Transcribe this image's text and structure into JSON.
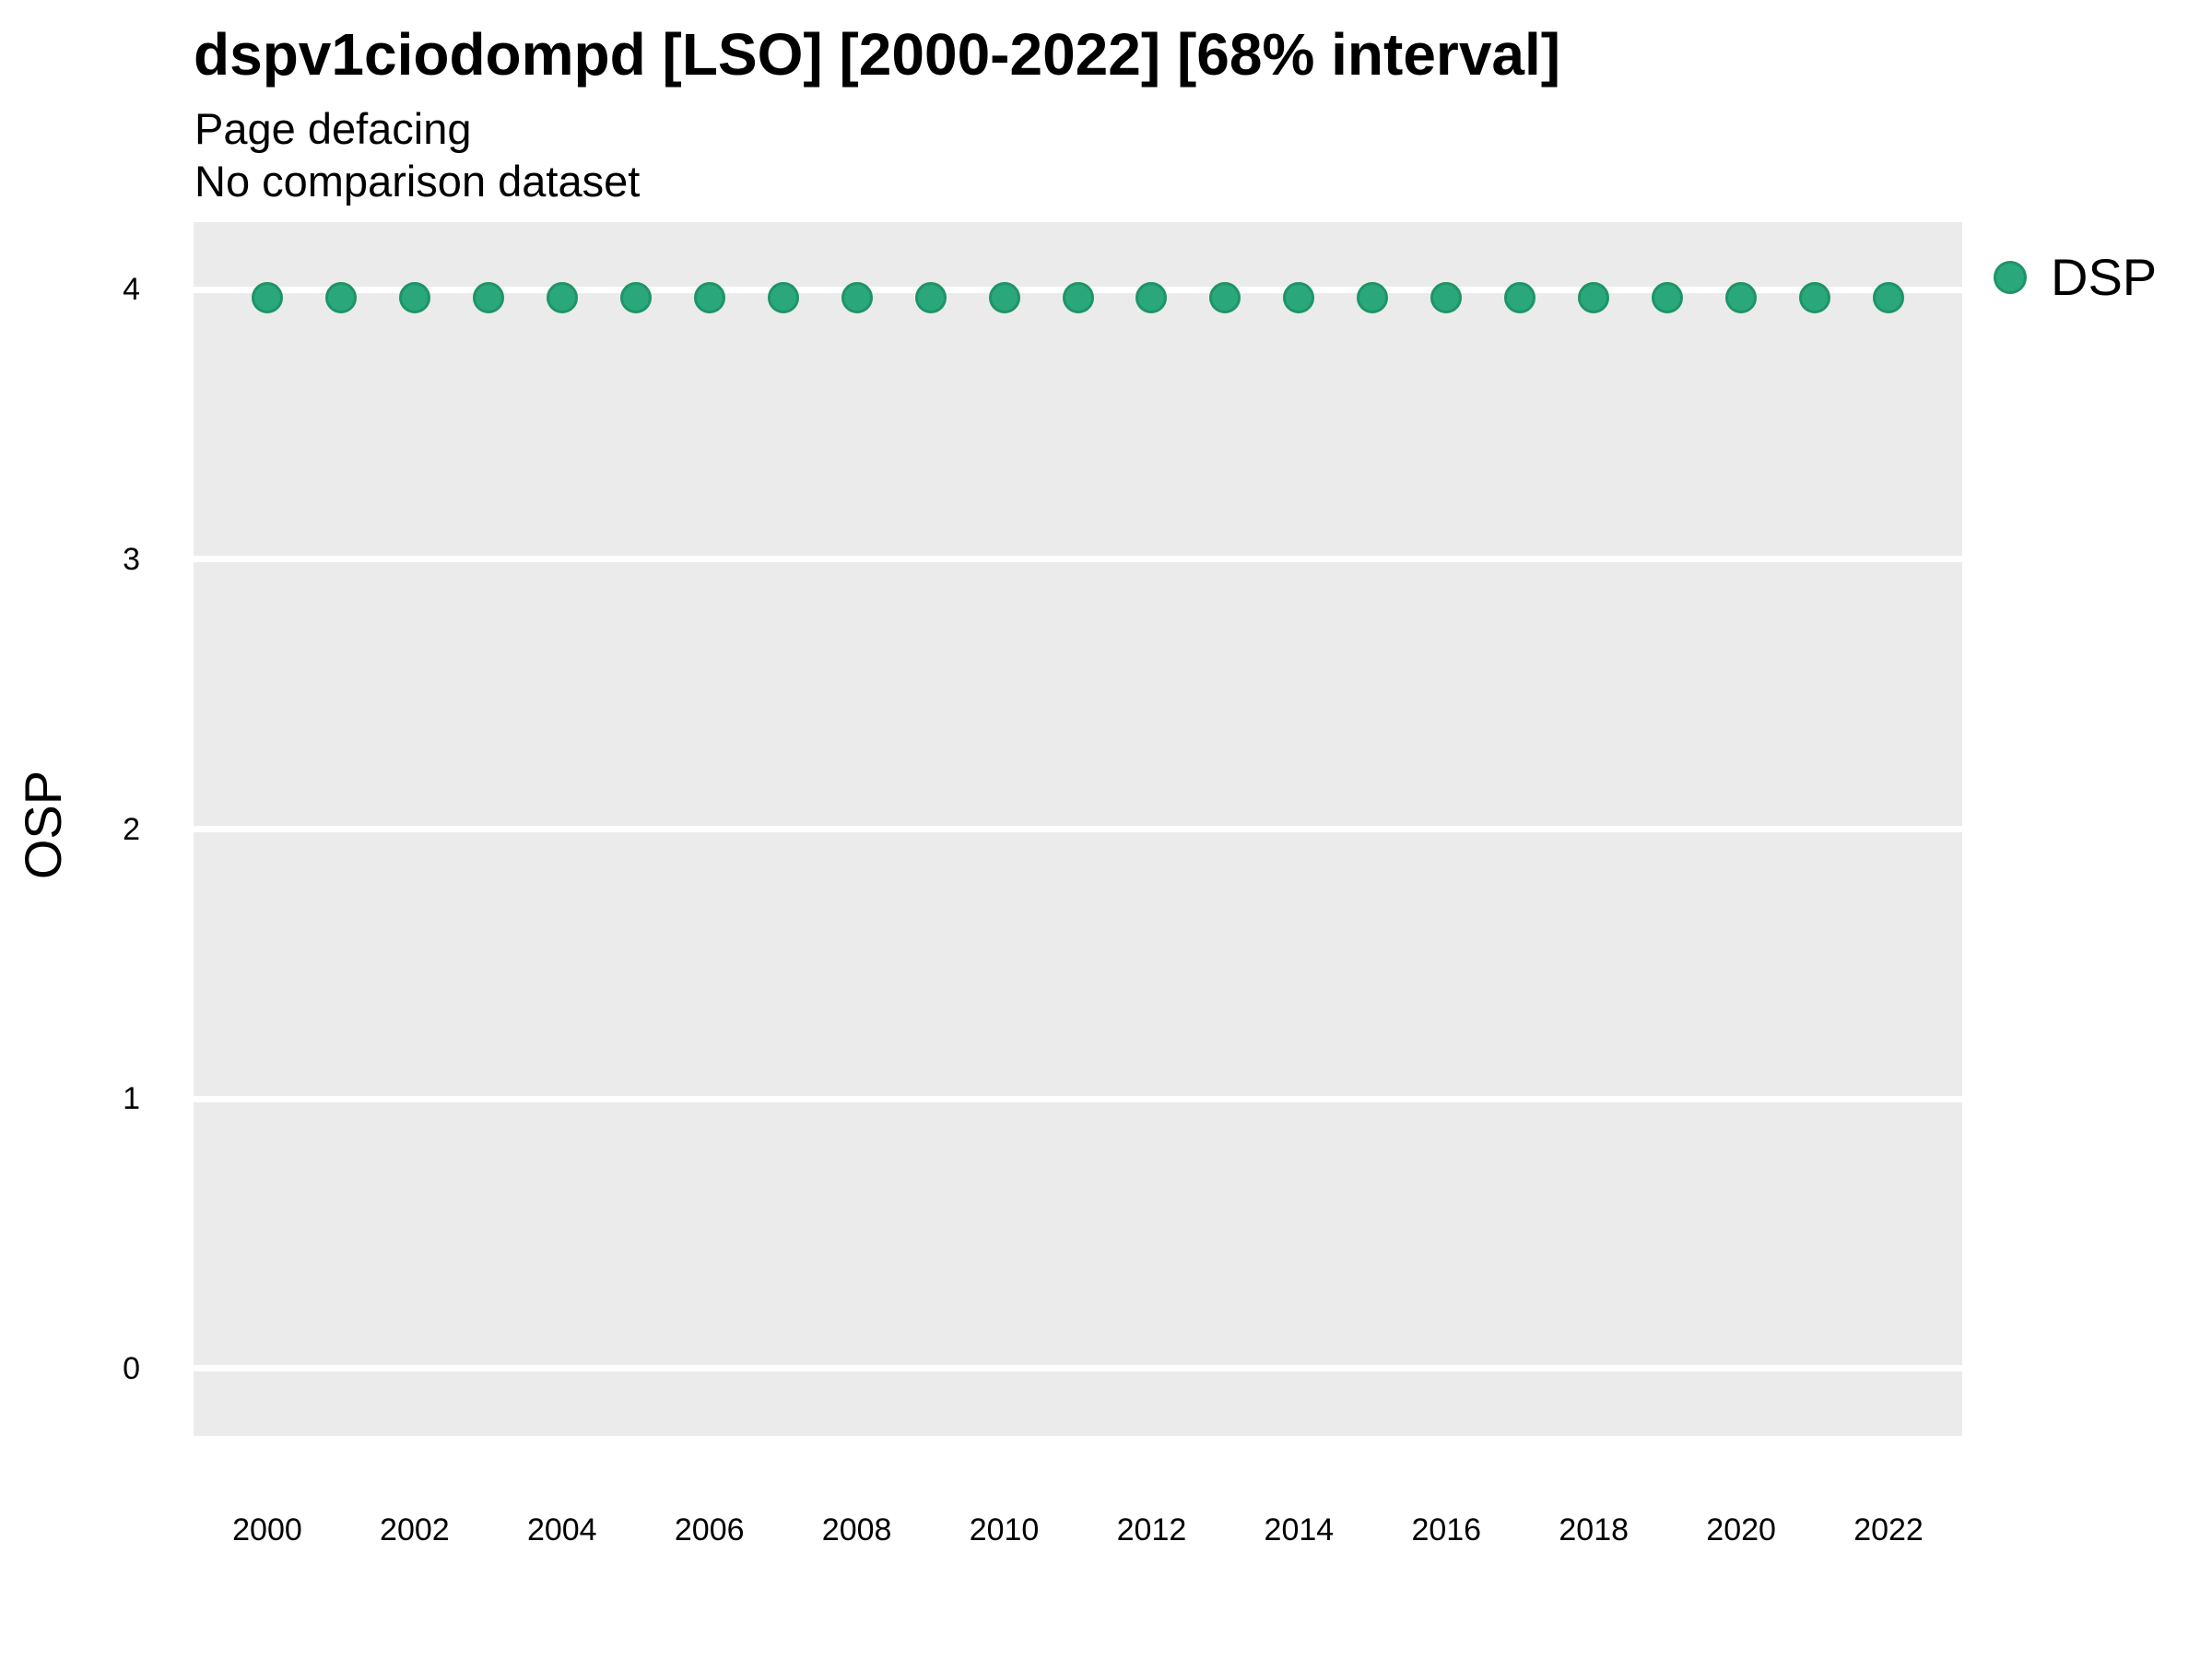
{
  "header": {
    "title": "dspv1ciodompd [LSO] [2000-2022] [68% interval]",
    "subtitle": "Page defacing",
    "note": "No comparison dataset"
  },
  "axes": {
    "y_title": "OSP",
    "x_title": ""
  },
  "legend": {
    "position": "right",
    "items": [
      {
        "label": "DSP",
        "marker": "circle",
        "color": "#2aa87c"
      }
    ]
  },
  "colors": {
    "panel_bg": "#ebebeb",
    "gridline": "#ffffff",
    "point_fill": "#2aa87c",
    "point_stroke": "#1e9468",
    "text": "#000000",
    "background": "#ffffff"
  },
  "chart_data": {
    "type": "scatter",
    "title": "dspv1ciodompd [LSO] [2000-2022] [68% interval]",
    "subtitle": "Page defacing",
    "note": "No comparison dataset",
    "xlabel": "",
    "ylabel": "OSP",
    "xlim": [
      1999,
      2023
    ],
    "ylim": [
      -0.25,
      4.25
    ],
    "xticks": [
      2000,
      2002,
      2004,
      2006,
      2008,
      2010,
      2012,
      2014,
      2016,
      2018,
      2020,
      2022
    ],
    "yticks": [
      0,
      1,
      2,
      3,
      4
    ],
    "grid": "major horizontal only, white lines on gray panel",
    "legend_position": "right",
    "series": [
      {
        "name": "DSP",
        "marker": "circle",
        "color": "#2aa87c",
        "x": [
          2000,
          2001,
          2002,
          2003,
          2004,
          2005,
          2006,
          2007,
          2008,
          2009,
          2010,
          2011,
          2012,
          2013,
          2014,
          2015,
          2016,
          2017,
          2018,
          2019,
          2020,
          2021,
          2022
        ],
        "y": [
          3.97,
          3.97,
          3.97,
          3.97,
          3.97,
          3.97,
          3.97,
          3.97,
          3.97,
          3.97,
          3.97,
          3.97,
          3.97,
          3.97,
          3.97,
          3.97,
          3.97,
          3.97,
          3.97,
          3.97,
          3.97,
          3.97,
          3.97
        ]
      }
    ]
  }
}
